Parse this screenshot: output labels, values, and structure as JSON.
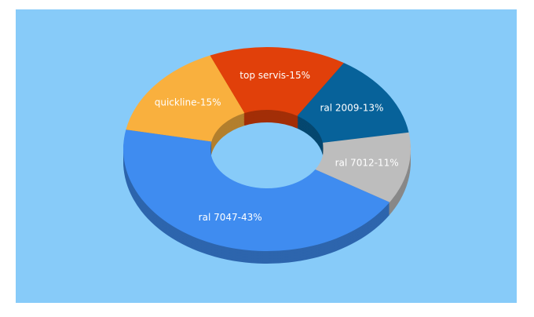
{
  "chart_data": {
    "type": "donut3d",
    "values": [
      15,
      15,
      13,
      11,
      43
    ],
    "value_labels": [
      "quickline-15%",
      "top servis-15%",
      "ral 2009-13%",
      "ral 7012-11%",
      "ral 7047-43%"
    ],
    "colors": [
      "#f9b03e",
      "#e1400a",
      "#07629a",
      "#bdbdbd",
      "#3f8cf0"
    ]
  }
}
